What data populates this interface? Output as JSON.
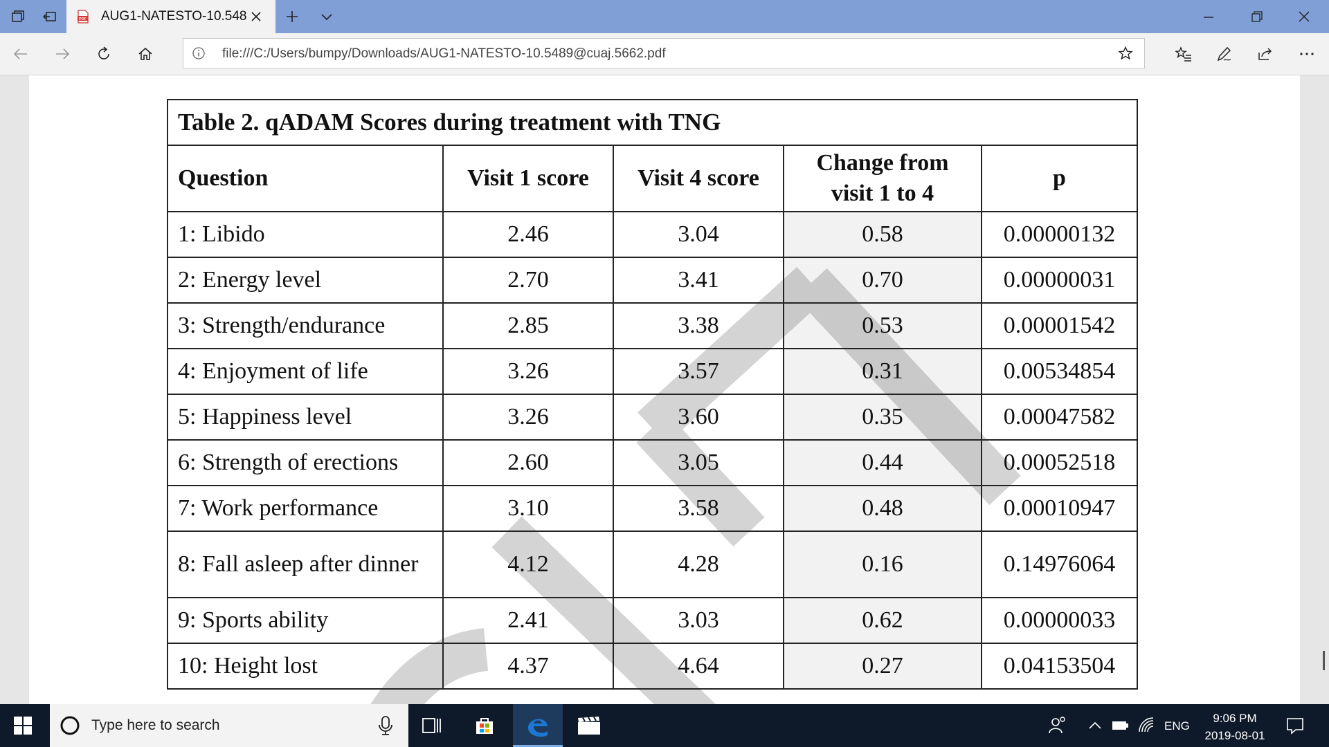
{
  "browser": {
    "tab_title": "AUG1-NATESTO-10.548",
    "tab_favicon_label": "PDF",
    "address": "file:///C:/Users/bumpy/Downloads/AUG1-NATESTO-10.5489@cuaj.5662.pdf"
  },
  "pdf": {
    "table_title": "Table 2. qADAM Scores during treatment with TNG",
    "headers": [
      "Question",
      "Visit 1 score",
      "Visit 4 score",
      "Change from visit 1 to 4",
      "p"
    ],
    "rows": [
      [
        "1: Libido",
        "2.46",
        "3.04",
        "0.58",
        "0.00000132"
      ],
      [
        "2: Energy level",
        "2.70",
        "3.41",
        "0.70",
        "0.00000031"
      ],
      [
        "3: Strength/endurance",
        "2.85",
        "3.38",
        "0.53",
        "0.00001542"
      ],
      [
        "4: Enjoyment of life",
        "3.26",
        "3.57",
        "0.31",
        "0.00534854"
      ],
      [
        "5: Happiness level",
        "3.26",
        "3.60",
        "0.35",
        "0.00047582"
      ],
      [
        "6: Strength of erections",
        "2.60",
        "3.05",
        "0.44",
        "0.00052518"
      ],
      [
        "7: Work performance",
        "3.10",
        "3.58",
        "0.48",
        "0.00010947"
      ],
      [
        "8: Fall asleep after dinner",
        "4.12",
        "4.28",
        "0.16",
        "0.14976064"
      ],
      [
        "9: Sports ability",
        "2.41",
        "3.03",
        "0.62",
        "0.00000033"
      ],
      [
        "10: Height lost",
        "4.37",
        "4.64",
        "0.27",
        "0.04153504"
      ]
    ]
  },
  "taskbar": {
    "search_placeholder": "Type here to search",
    "language": "ENG",
    "time": "9:06 PM",
    "date": "2019-08-01"
  },
  "colors": {
    "titlebar": "#7f9fd6",
    "taskbar": "#0e1a2a",
    "edge_blue": "#1c78d4"
  }
}
